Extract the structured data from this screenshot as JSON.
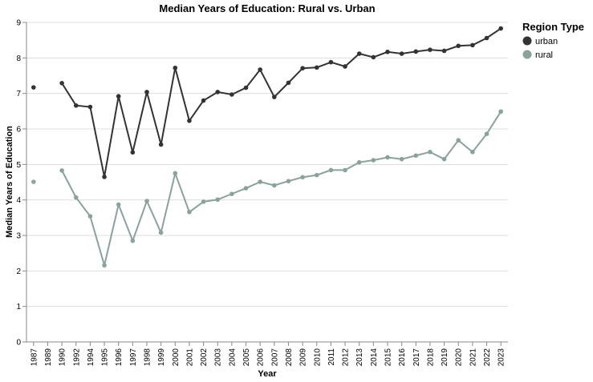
{
  "chart_data": {
    "type": "line",
    "title": "Median Years of Education: Rural vs. Urban",
    "xlabel": "Year",
    "ylabel": "Median Years of Education",
    "ylim": [
      0,
      9
    ],
    "yticks": [
      0,
      1,
      2,
      3,
      4,
      5,
      6,
      7,
      8,
      9
    ],
    "grid": true,
    "legend": {
      "title": "Region Type",
      "placement": "right"
    },
    "categories": [
      "1987",
      "1989",
      "1990",
      "1992",
      "1994",
      "1995",
      "1996",
      "1997",
      "1998",
      "1999",
      "2000",
      "2001",
      "2002",
      "2003",
      "2004",
      "2005",
      "2006",
      "2007",
      "2008",
      "2009",
      "2010",
      "2011",
      "2012",
      "2013",
      "2014",
      "2015",
      "2016",
      "2017",
      "2018",
      "2019",
      "2020",
      "2021",
      "2022",
      "2023"
    ],
    "series": [
      {
        "name": "urban",
        "color": "#333333",
        "values": [
          7.17,
          null,
          7.29,
          6.66,
          6.62,
          4.65,
          6.92,
          5.34,
          7.04,
          5.56,
          7.72,
          6.23,
          6.8,
          7.04,
          6.97,
          7.16,
          7.67,
          6.9,
          7.3,
          7.71,
          7.73,
          7.88,
          7.76,
          8.12,
          8.02,
          8.17,
          8.12,
          8.18,
          8.23,
          8.2,
          8.34,
          8.36,
          8.56,
          8.83
        ]
      },
      {
        "name": "rural",
        "color": "#88a39e",
        "values": [
          4.51,
          null,
          4.83,
          4.07,
          3.54,
          2.16,
          3.87,
          2.85,
          3.97,
          3.08,
          4.75,
          3.66,
          3.95,
          4.01,
          4.17,
          4.33,
          4.51,
          4.41,
          4.53,
          4.64,
          4.7,
          4.84,
          4.84,
          5.06,
          5.12,
          5.2,
          5.15,
          5.25,
          5.35,
          5.15,
          5.68,
          5.35,
          5.86,
          6.49
        ]
      }
    ]
  }
}
